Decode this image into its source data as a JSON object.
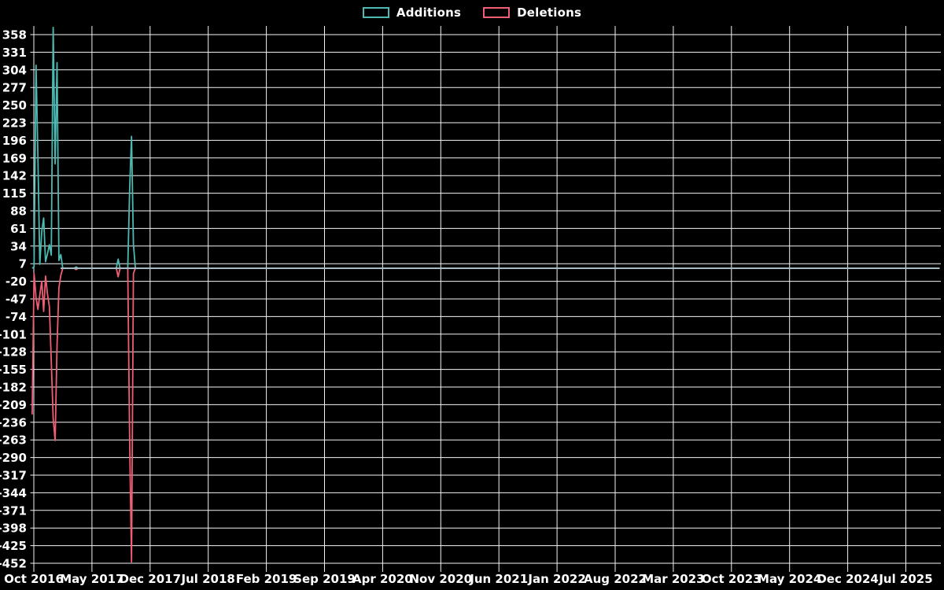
{
  "page": {
    "background": "#000000"
  },
  "legend": {
    "position": "top-center"
  },
  "chart_data": {
    "type": "line",
    "title": "",
    "xlabel": "",
    "ylabel": "",
    "grid": true,
    "legend_position": "top-center",
    "background_color": "#000000",
    "gridline_color": "#f2f5f6",
    "tick_text_color": "#ffffff",
    "zero_line_color": "#a6bcc4",
    "y_axis": {
      "max": 358,
      "min": -452,
      "step": 27,
      "tick_labels": [
        358,
        331,
        304,
        277,
        250,
        223,
        196,
        169,
        142,
        115,
        88,
        61,
        34,
        7,
        -20,
        -47,
        -74,
        -101,
        -128,
        -155,
        -182,
        -209,
        -236,
        -263,
        -290,
        -317,
        -344,
        -371,
        -398,
        -425,
        -452
      ]
    },
    "x_axis": {
      "origin_date": "2016-10-01",
      "months_per_tick": 7,
      "tick_labels": [
        "Oct 2016",
        "May 2017",
        "Dec 2017",
        "Jul 2018",
        "Feb 2019",
        "Sep 2019",
        "Apr 2020",
        "Nov 2020",
        "Jun 2021",
        "Jan 2022",
        "Aug 2022",
        "Mar 2023",
        "Oct 2023",
        "May 2024",
        "Dec 2024",
        "Jul 2025"
      ]
    },
    "series": [
      {
        "name": "Additions",
        "color": "#4cb9b3",
        "points": [
          [
            "2016-09-25",
            0
          ],
          [
            "2016-10-02",
            2
          ],
          [
            "2016-10-09",
            311
          ],
          [
            "2016-10-16",
            170
          ],
          [
            "2016-10-23",
            6
          ],
          [
            "2016-10-30",
            57
          ],
          [
            "2016-11-06",
            77
          ],
          [
            "2016-11-13",
            10
          ],
          [
            "2016-11-20",
            22
          ],
          [
            "2016-11-27",
            36
          ],
          [
            "2016-12-04",
            20
          ],
          [
            "2016-12-11",
            369
          ],
          [
            "2016-12-18",
            160
          ],
          [
            "2016-12-25",
            315
          ],
          [
            "2017-01-01",
            12
          ],
          [
            "2017-01-08",
            21
          ],
          [
            "2017-01-15",
            0
          ],
          [
            "2017-02-26",
            0
          ],
          [
            "2017-03-05",
            2
          ],
          [
            "2017-03-12",
            0
          ],
          [
            "2017-07-30",
            0
          ],
          [
            "2017-08-06",
            14
          ],
          [
            "2017-08-13",
            0
          ],
          [
            "2017-09-10",
            0
          ],
          [
            "2017-09-17",
            120
          ],
          [
            "2017-09-24",
            202
          ],
          [
            "2017-10-01",
            37
          ],
          [
            "2017-10-08",
            0
          ],
          [
            "2025-11-02",
            0
          ]
        ]
      },
      {
        "name": "Deletions",
        "color": "#f05e74",
        "points": [
          [
            "2016-09-25",
            -224
          ],
          [
            "2016-10-02",
            -8
          ],
          [
            "2016-10-09",
            -45
          ],
          [
            "2016-10-16",
            -63
          ],
          [
            "2016-10-23",
            -41
          ],
          [
            "2016-10-30",
            -20
          ],
          [
            "2016-11-06",
            -66
          ],
          [
            "2016-11-13",
            -12
          ],
          [
            "2016-11-20",
            -39
          ],
          [
            "2016-11-27",
            -59
          ],
          [
            "2016-12-04",
            -143
          ],
          [
            "2016-12-11",
            -230
          ],
          [
            "2016-12-18",
            -264
          ],
          [
            "2016-12-25",
            -119
          ],
          [
            "2017-01-01",
            -30
          ],
          [
            "2017-01-08",
            -11
          ],
          [
            "2017-01-15",
            0
          ],
          [
            "2017-02-26",
            0
          ],
          [
            "2017-03-05",
            -2
          ],
          [
            "2017-03-12",
            0
          ],
          [
            "2017-07-30",
            0
          ],
          [
            "2017-08-06",
            -13
          ],
          [
            "2017-08-13",
            0
          ],
          [
            "2017-09-10",
            0
          ],
          [
            "2017-09-17",
            -263
          ],
          [
            "2017-09-24",
            -450
          ],
          [
            "2017-10-01",
            -8
          ],
          [
            "2017-10-08",
            0
          ],
          [
            "2025-11-02",
            0
          ]
        ]
      }
    ]
  }
}
